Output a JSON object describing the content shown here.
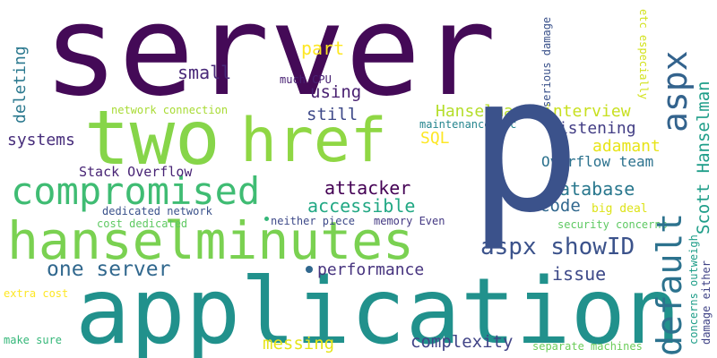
{
  "words": [
    {
      "text": "server",
      "color": "#440a57"
    },
    {
      "text": "p",
      "color": "#3b528b"
    },
    {
      "text": "application",
      "color": "#21918c"
    },
    {
      "text": "hanselminutes",
      "color": "#7ad151"
    },
    {
      "text": "two",
      "color": "#86d549"
    },
    {
      "text": "href",
      "color": "#8fd744"
    },
    {
      "text": "compromised",
      "color": "#3fbc73"
    },
    {
      "text": "default",
      "color": "#2c728e"
    },
    {
      "text": "aspx",
      "color": "#33638d"
    },
    {
      "text": "one server",
      "color": "#31688e"
    },
    {
      "text": "aspx showID",
      "color": "#3b528b"
    },
    {
      "text": "performance",
      "color": "#46337e"
    },
    {
      "text": "complexity",
      "color": "#414487"
    },
    {
      "text": "messing",
      "color": "#e5e419"
    },
    {
      "text": "attacker",
      "color": "#440154"
    },
    {
      "text": "accessible",
      "color": "#22a884"
    },
    {
      "text": "database",
      "color": "#2a788e"
    },
    {
      "text": "code",
      "color": "#31688e"
    },
    {
      "text": "issue",
      "color": "#3e4a89"
    },
    {
      "text": "Listening",
      "color": "#433e85"
    },
    {
      "text": "adamant",
      "color": "#e7e419"
    },
    {
      "text": "interview",
      "color": "#c8e020"
    },
    {
      "text": "Hanselman",
      "color": "#b5de2b"
    },
    {
      "text": "SQL",
      "color": "#fde725"
    },
    {
      "text": "Overflow team",
      "color": "#2c728e"
    },
    {
      "text": "Scott Hanselman",
      "color": "#1f9e89"
    },
    {
      "text": "systems",
      "color": "#472d7b"
    },
    {
      "text": "deleting",
      "color": "#2a788e"
    },
    {
      "text": "small",
      "color": "#482878"
    },
    {
      "text": "part",
      "color": "#fde725"
    },
    {
      "text": "using",
      "color": "#481f70"
    },
    {
      "text": "still",
      "color": "#3e4989"
    },
    {
      "text": "Stack Overflow",
      "color": "#482475"
    },
    {
      "text": "network connection",
      "color": "#a8db34"
    },
    {
      "text": "maintenance etc",
      "color": "#25858e"
    },
    {
      "text": "much CPU",
      "color": "#482173"
    },
    {
      "text": "dedicated network",
      "color": "#3b528b"
    },
    {
      "text": "cost dedicated",
      "color": "#5ec962"
    },
    {
      "text": "neither piece",
      "color": "#3e4a89"
    },
    {
      "text": "memory Even",
      "color": "#443983"
    },
    {
      "text": "security concerns",
      "color": "#5ec962"
    },
    {
      "text": "big deal",
      "color": "#dde318"
    },
    {
      "text": "extra cost",
      "color": "#fde725"
    },
    {
      "text": "make sure",
      "color": "#35b779"
    },
    {
      "text": "separate machines",
      "color": "#6ccd5a"
    },
    {
      "text": "serious damage",
      "color": "#3b528b"
    },
    {
      "text": "etc especially",
      "color": "#d2e21b"
    },
    {
      "text": "concerns outweigh",
      "color": "#1f9e89"
    },
    {
      "text": "damage either",
      "color": "#414487"
    }
  ]
}
